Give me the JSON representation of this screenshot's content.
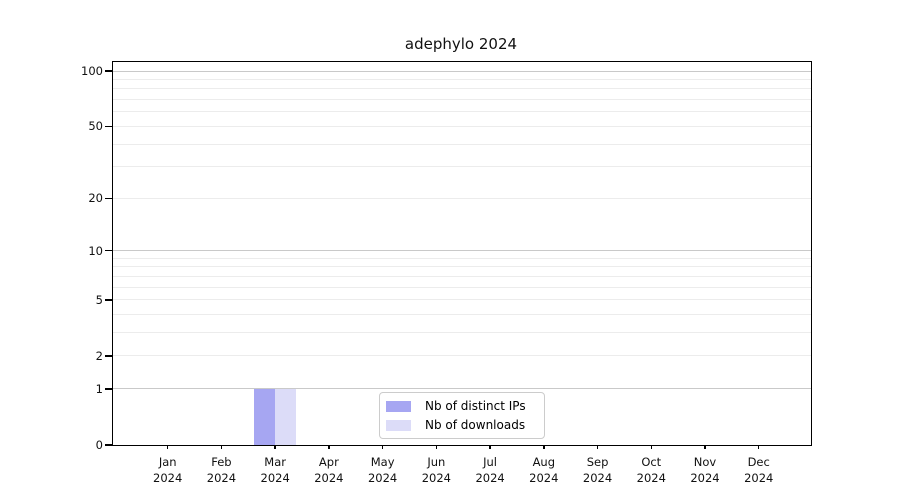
{
  "figure": {
    "background": "#ffffff",
    "axis_color": "#000000"
  },
  "chart_data": {
    "type": "bar",
    "title": "adephylo 2024",
    "x_tick_months": [
      "Jan",
      "Feb",
      "Mar",
      "Apr",
      "May",
      "Jun",
      "Jul",
      "Aug",
      "Sep",
      "Oct",
      "Nov",
      "Dec"
    ],
    "x_tick_year": "2024",
    "y_scale": "log1p",
    "ylim": [
      0,
      112
    ],
    "y_axis_ticks": [
      0,
      1,
      2,
      5,
      10,
      20,
      50,
      100
    ],
    "y_major_gridlines": [
      1,
      10,
      100
    ],
    "y_minor_gridlines": [
      2,
      3,
      4,
      5,
      6,
      7,
      8,
      9,
      20,
      30,
      40,
      50,
      60,
      70,
      80,
      90
    ],
    "grid": "horizontal-only",
    "legend_position": "lower-center",
    "series": [
      {
        "name": "Nb of distinct IPs",
        "color": "#a6a6f2",
        "values": [
          0,
          0,
          1,
          0,
          0,
          0,
          0,
          0,
          0,
          0,
          0,
          0
        ]
      },
      {
        "name": "Nb of downloads",
        "color": "#dcdcf8",
        "values": [
          0,
          0,
          1,
          0,
          0,
          0,
          0,
          0,
          0,
          0,
          0,
          0
        ]
      }
    ],
    "grid_major_color": "#c9c9c9",
    "grid_minor_color": "#ececec"
  }
}
